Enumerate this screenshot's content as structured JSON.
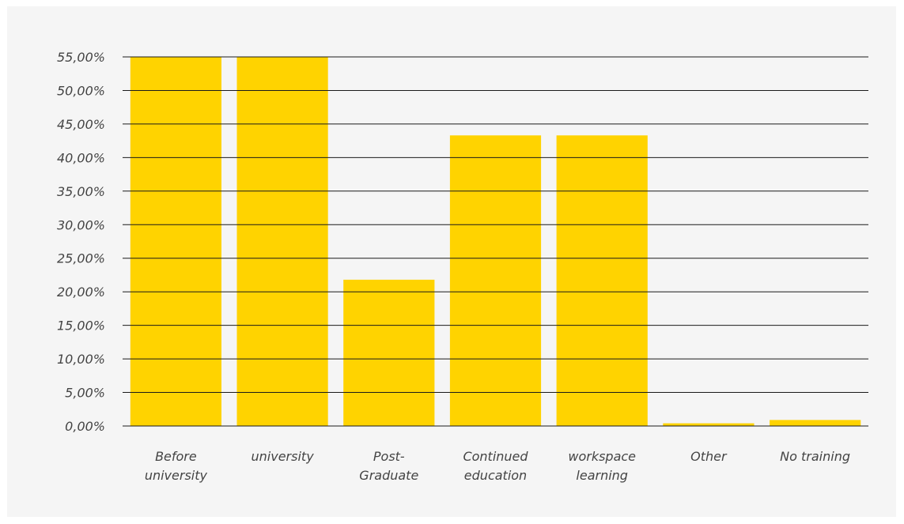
{
  "chart_data": {
    "type": "bar",
    "categories": [
      [
        "Before",
        "university"
      ],
      [
        "university"
      ],
      [
        "Post-",
        "Graduate"
      ],
      [
        "Continued",
        "education"
      ],
      [
        "workspace",
        "learning"
      ],
      [
        "Other"
      ],
      [
        "No training"
      ]
    ],
    "values": [
      55.0,
      55.0,
      21.8,
      43.3,
      43.3,
      0.4,
      0.9
    ],
    "ylim": [
      0,
      55
    ],
    "yticks": [
      0,
      5,
      10,
      15,
      20,
      25,
      30,
      35,
      40,
      45,
      50,
      55
    ],
    "ytick_labels": [
      "0,00%",
      "5,00%",
      "10,00%",
      "15,00%",
      "20,00%",
      "25,00%",
      "30,00%",
      "35,00%",
      "40,00%",
      "45,00%",
      "50,00%",
      "55,00%"
    ],
    "grid": true,
    "title": "",
    "xlabel": "",
    "ylabel": "",
    "colors": {
      "bar": "#ffd300",
      "grid": "#1a1a1a",
      "text": "#444444",
      "panel": "#f5f5f5"
    }
  }
}
